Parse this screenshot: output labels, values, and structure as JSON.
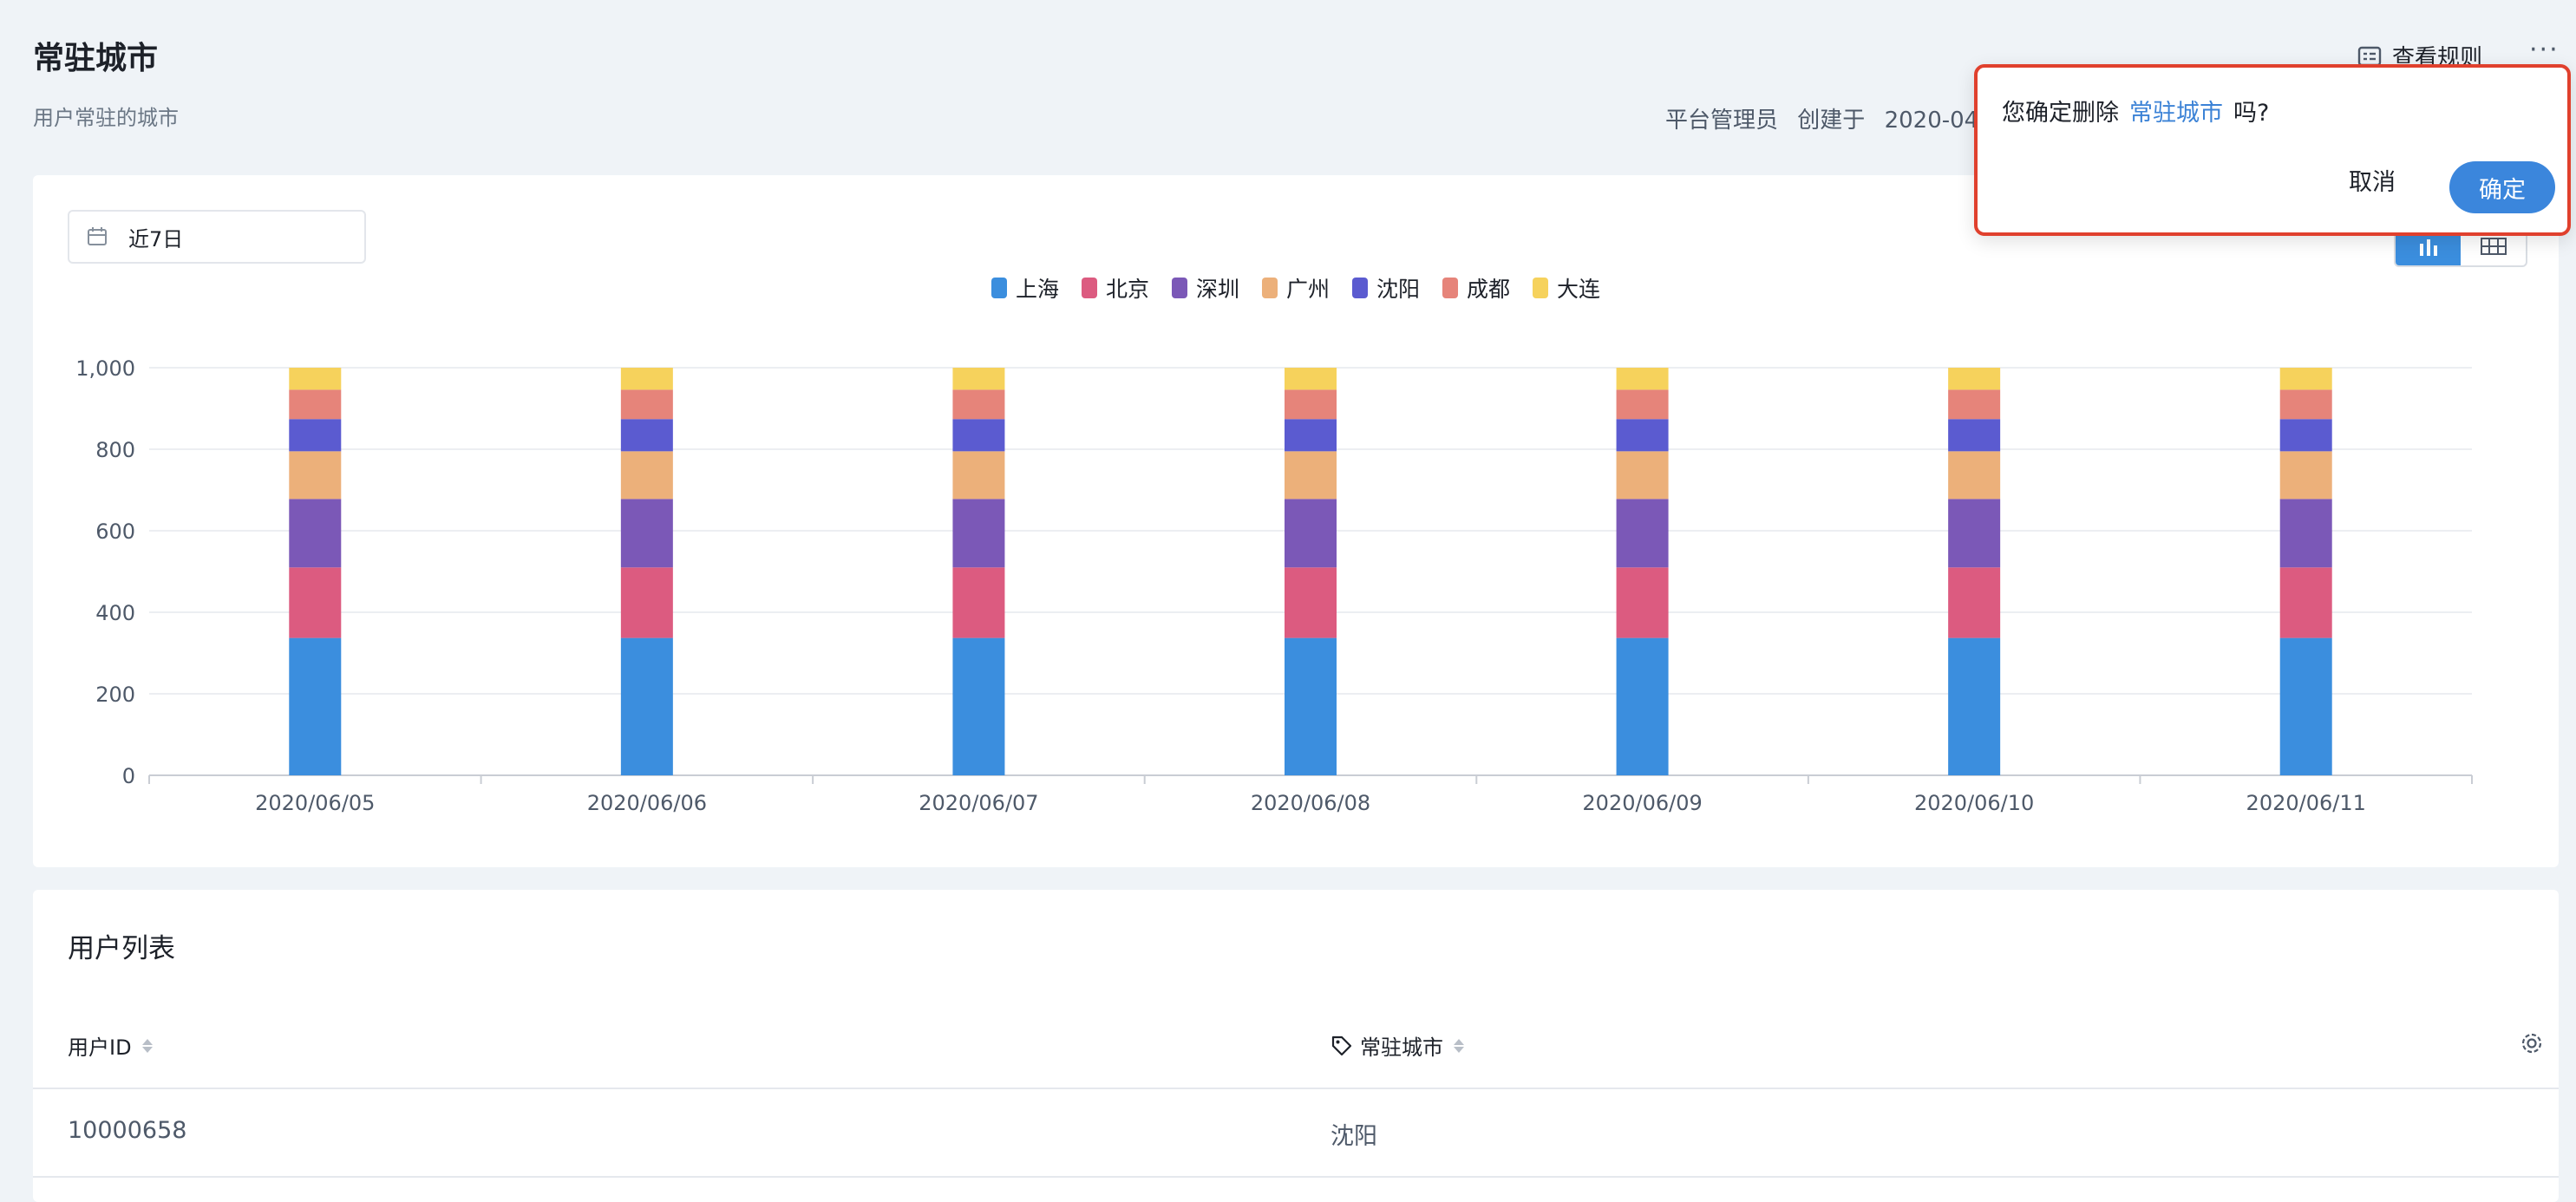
{
  "header": {
    "title": "常驻城市",
    "subtitle": "用户常驻的城市",
    "owner": "平台管理员",
    "created_label": "创建于",
    "created_value": "2020-04-",
    "rules_label": "查看规则",
    "more_label": "···"
  },
  "toolbar": {
    "date_range": "近7日"
  },
  "chart_data": {
    "type": "bar",
    "stacked": true,
    "categories": [
      "2020/06/05",
      "2020/06/06",
      "2020/06/07",
      "2020/06/08",
      "2020/06/09",
      "2020/06/10",
      "2020/06/11"
    ],
    "series": [
      {
        "name": "上海",
        "color": "#3b8ede",
        "values": [
          337,
          337,
          337,
          337,
          337,
          337,
          337
        ]
      },
      {
        "name": "北京",
        "color": "#dc5b80",
        "values": [
          173,
          173,
          173,
          173,
          173,
          173,
          173
        ]
      },
      {
        "name": "深圳",
        "color": "#7b58b7",
        "values": [
          168,
          168,
          168,
          168,
          168,
          168,
          168
        ]
      },
      {
        "name": "广州",
        "color": "#ecb07a",
        "values": [
          117,
          117,
          117,
          117,
          117,
          117,
          117
        ]
      },
      {
        "name": "沈阳",
        "color": "#5b5bd0",
        "values": [
          79,
          79,
          79,
          79,
          79,
          79,
          79
        ]
      },
      {
        "name": "成都",
        "color": "#e6847a",
        "values": [
          72,
          72,
          72,
          72,
          72,
          72,
          72
        ]
      },
      {
        "name": "大连",
        "color": "#f6d25c",
        "values": [
          54,
          54,
          54,
          54,
          54,
          54,
          54
        ]
      }
    ],
    "yticks": [
      "0",
      "200",
      "400",
      "600",
      "800",
      "1,000"
    ],
    "ylim": [
      0,
      1000
    ],
    "grid": true,
    "legend": "top-center"
  },
  "table": {
    "title": "用户列表",
    "columns": [
      "用户ID",
      "常驻城市"
    ],
    "rows": [
      {
        "id": "10000658",
        "city": "沈阳"
      }
    ]
  },
  "popconfirm": {
    "prefix": "您确定删除",
    "target": "常驻城市",
    "suffix": "吗?",
    "cancel_label": "取消",
    "ok_label": "确定"
  },
  "icons": {
    "calendar": "calendar-icon",
    "rules": "document-icon",
    "settings": "gear-icon",
    "tag": "tag-icon",
    "chart_view": "bar-chart-icon",
    "table_view": "table-icon"
  }
}
